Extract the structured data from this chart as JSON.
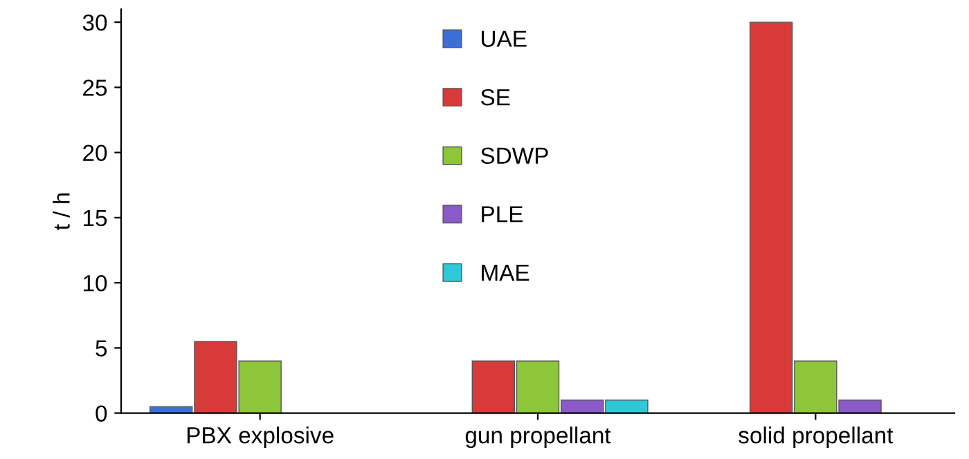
{
  "chart_data": {
    "type": "bar",
    "ylabel": "t / h",
    "categories": [
      "PBX explosive",
      "gun propellant",
      "solid propellant"
    ],
    "series": [
      {
        "name": "UAE",
        "color": "#3a6fd8",
        "values": [
          0.5,
          null,
          null
        ]
      },
      {
        "name": "SE",
        "color": "#d83a3a",
        "values": [
          5.5,
          4,
          30
        ]
      },
      {
        "name": "SDWP",
        "color": "#8ec63a",
        "values": [
          4,
          4,
          4
        ]
      },
      {
        "name": "PLE",
        "color": "#8a5ac8",
        "values": [
          null,
          1,
          1
        ]
      },
      {
        "name": "MAE",
        "color": "#2ec8d8",
        "values": [
          null,
          1,
          null
        ]
      }
    ],
    "ylim": [
      0,
      31
    ],
    "yticks": [
      0,
      5,
      10,
      15,
      20,
      25,
      30
    ],
    "grid": false,
    "legend": "top"
  }
}
